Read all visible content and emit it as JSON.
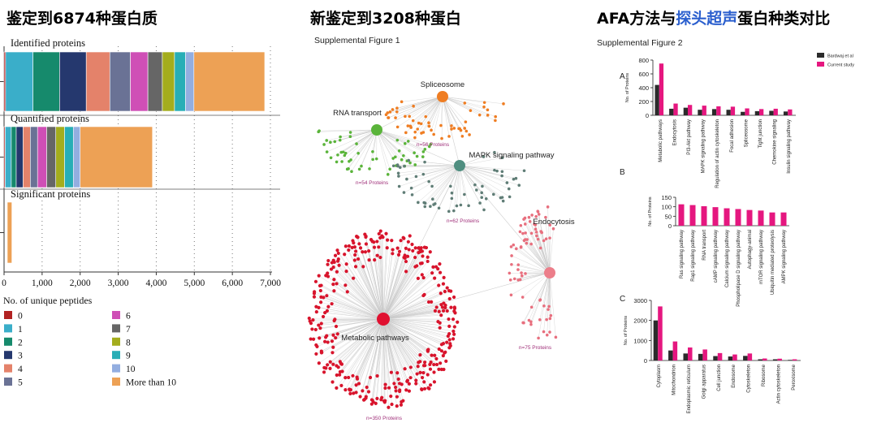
{
  "titles": {
    "left": "鉴定到6874种蛋白质",
    "middle": "新鉴定到3208种蛋白",
    "right_a": "AFA方法与",
    "right_b": "探头超声",
    "right_c": "蛋白种类对比"
  },
  "colors": {
    "c0": "#b22222",
    "c1": "#3aaec9",
    "c2": "#168a6c",
    "c3": "#25386e",
    "c4": "#e4826a",
    "c5": "#6a7295",
    "c6": "#cf4fb6",
    "c7": "#666666",
    "c8": "#a4ad1d",
    "c9": "#28aeb6",
    "c10": "#93aee0",
    "cMore": "#eda155",
    "bardwaj": "#2b2b2b",
    "current": "#e5177f",
    "green": "#5ab43a",
    "orange": "#ef7d22",
    "teal": "#4f8e80",
    "pink": "#ec7e8a",
    "red": "#e01030"
  },
  "chart_data": [
    {
      "type": "bar",
      "orientation": "horizontal-stacked",
      "categories": [
        "Identified proteins",
        "Quantified proteins",
        "Significant proteins"
      ],
      "legend_title": "No. of unique peptides",
      "series": [
        {
          "name": "0",
          "values": [
            40,
            30,
            0
          ]
        },
        {
          "name": "1",
          "values": [
            720,
            160,
            0
          ]
        },
        {
          "name": "2",
          "values": [
            700,
            130,
            0
          ]
        },
        {
          "name": "3",
          "values": [
            700,
            180,
            0
          ]
        },
        {
          "name": "4",
          "values": [
            620,
            190,
            0
          ]
        },
        {
          "name": "5",
          "values": [
            540,
            190,
            0
          ]
        },
        {
          "name": "6",
          "values": [
            460,
            240,
            0
          ]
        },
        {
          "name": "7",
          "values": [
            380,
            240,
            0
          ]
        },
        {
          "name": "8",
          "values": [
            320,
            230,
            0
          ]
        },
        {
          "name": "9",
          "values": [
            290,
            230,
            0
          ]
        },
        {
          "name": "10",
          "values": [
            220,
            180,
            0
          ]
        },
        {
          "name": "More than 10",
          "values": [
            1860,
            1900,
            120
          ]
        }
      ],
      "xticks": [
        "0",
        "1,000",
        "2,000",
        "3,000",
        "4,000",
        "5,000",
        "6,000",
        "7,000"
      ],
      "xlim": [
        0,
        7000
      ],
      "legend_position": "bottom"
    },
    {
      "type": "network",
      "figure_label": "Supplemental Figure 1",
      "nodes": [
        {
          "label": "Spliceosome",
          "count": "n=56 Proteins"
        },
        {
          "label": "RNA transport",
          "count": "n=54 Proteins"
        },
        {
          "label": "MAPK signaling pathway",
          "count": "n=62 Proteins"
        },
        {
          "label": "Endocytosis",
          "count": "n=75 Proteins"
        },
        {
          "label": "Metabolic pathways",
          "count": "n=350 Proteins"
        }
      ]
    },
    {
      "type": "bar",
      "figure_label": "Supplemental Figure 2",
      "panel": "A",
      "ylabel": "No. of Proteins",
      "ylim": [
        0,
        800
      ],
      "yticks": [
        "0",
        "200",
        "400",
        "600",
        "800"
      ],
      "categories": [
        "Metabolic pathways",
        "Endocytosis",
        "PI3-Akt pathway",
        "MAPK signaling pathway",
        "Regulation of actin cytoskeleton",
        "Focal adhesion",
        "Spliceosome",
        "Tight junction",
        "Chemokine signaling",
        "Insulin signaling pathway"
      ],
      "series": [
        {
          "name": "Bardwaj et al",
          "values": [
            440,
            95,
            110,
            80,
            90,
            80,
            50,
            60,
            65,
            55
          ]
        },
        {
          "name": "Current study",
          "values": [
            750,
            170,
            150,
            140,
            130,
            125,
            100,
            90,
            95,
            85
          ]
        }
      ],
      "legend_position": "top-right"
    },
    {
      "type": "bar",
      "panel": "B",
      "ylabel": "No. of Proteins",
      "ylim": [
        0,
        150
      ],
      "yticks": [
        "0",
        "50",
        "100",
        "150"
      ],
      "categories": [
        "Ras signaling pathway",
        "Rap1 signaling pathway",
        "RNA transport",
        "cAMP signaling pathway",
        "Calcium signaling pathway",
        "Phospholipase D signaling pathway",
        "Autophagy-animal",
        "mTOR signaling pathway",
        "Ubiquitin mediated proteolysis",
        "AMPK signaling pathway"
      ],
      "series": [
        {
          "name": "Current study",
          "values": [
            113,
            109,
            103,
            98,
            92,
            88,
            83,
            80,
            70,
            70
          ]
        }
      ]
    },
    {
      "type": "bar",
      "panel": "C",
      "ylabel": "No. of Proteins",
      "ylim": [
        0,
        3000
      ],
      "yticks": [
        "0",
        "1000",
        "2000",
        "3000"
      ],
      "categories": [
        "Cytoplasm",
        "Mitochondrion",
        "Endoplasmic reticulum",
        "Golgi apparatus",
        "Cell junction",
        "Endosome",
        "Cytoskeleton",
        "Ribosome",
        "Actin cytoskeleton",
        "Peroxisome"
      ],
      "series": [
        {
          "name": "Bardwaj et al",
          "values": [
            2000,
            500,
            350,
            330,
            220,
            200,
            230,
            60,
            60,
            30
          ]
        },
        {
          "name": "Current study",
          "values": [
            2700,
            950,
            650,
            550,
            370,
            300,
            350,
            100,
            90,
            60
          ]
        }
      ]
    }
  ]
}
